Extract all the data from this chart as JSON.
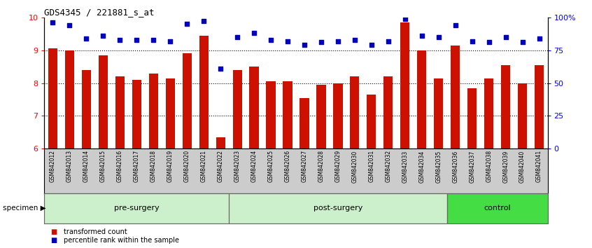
{
  "title": "GDS4345 / 221881_s_at",
  "samples": [
    "GSM842012",
    "GSM842013",
    "GSM842014",
    "GSM842015",
    "GSM842016",
    "GSM842017",
    "GSM842018",
    "GSM842019",
    "GSM842020",
    "GSM842021",
    "GSM842022",
    "GSM842023",
    "GSM842024",
    "GSM842025",
    "GSM842026",
    "GSM842027",
    "GSM842028",
    "GSM842029",
    "GSM842030",
    "GSM842031",
    "GSM842032",
    "GSM842033",
    "GSM842034",
    "GSM842035",
    "GSM842036",
    "GSM842037",
    "GSM842038",
    "GSM842039",
    "GSM842040",
    "GSM842041"
  ],
  "bar_values": [
    9.05,
    9.0,
    8.4,
    8.85,
    8.2,
    8.1,
    8.3,
    8.15,
    8.9,
    9.45,
    6.35,
    8.4,
    8.5,
    8.05,
    8.05,
    7.55,
    7.95,
    8.0,
    8.2,
    7.65,
    8.2,
    9.85,
    9.0,
    8.15,
    9.15,
    7.85,
    8.15,
    8.55,
    8.0,
    8.55
  ],
  "dot_values": [
    96,
    94,
    84,
    86,
    83,
    83,
    83,
    82,
    95,
    97,
    61,
    85,
    88,
    83,
    82,
    79,
    81,
    82,
    83,
    79,
    82,
    99,
    86,
    85,
    94,
    82,
    81,
    85,
    81,
    84
  ],
  "bar_color": "#cc1100",
  "dot_color": "#0000bb",
  "ylim_left": [
    6,
    10
  ],
  "ylim_right": [
    0,
    100
  ],
  "yticks_left": [
    6,
    7,
    8,
    9,
    10
  ],
  "yticks_right": [
    0,
    25,
    50,
    75,
    100
  ],
  "ytick_labels_right": [
    "0",
    "25",
    "50",
    "75",
    "100%"
  ],
  "groups": [
    {
      "label": "pre-surgery",
      "start": 0,
      "end": 11,
      "color": "#ccf0cc"
    },
    {
      "label": "post-surgery",
      "start": 11,
      "end": 24,
      "color": "#ccf0cc"
    },
    {
      "label": "control",
      "start": 24,
      "end": 30,
      "color": "#44dd44"
    }
  ],
  "legend_items": [
    {
      "label": "transformed count",
      "color": "#cc1100"
    },
    {
      "label": "percentile rank within the sample",
      "color": "#0000bb"
    }
  ],
  "specimen_label": "specimen",
  "grid_dotted_at": [
    7,
    8,
    9
  ],
  "sample_bg_color": "#cccccc",
  "bar_width": 0.55
}
